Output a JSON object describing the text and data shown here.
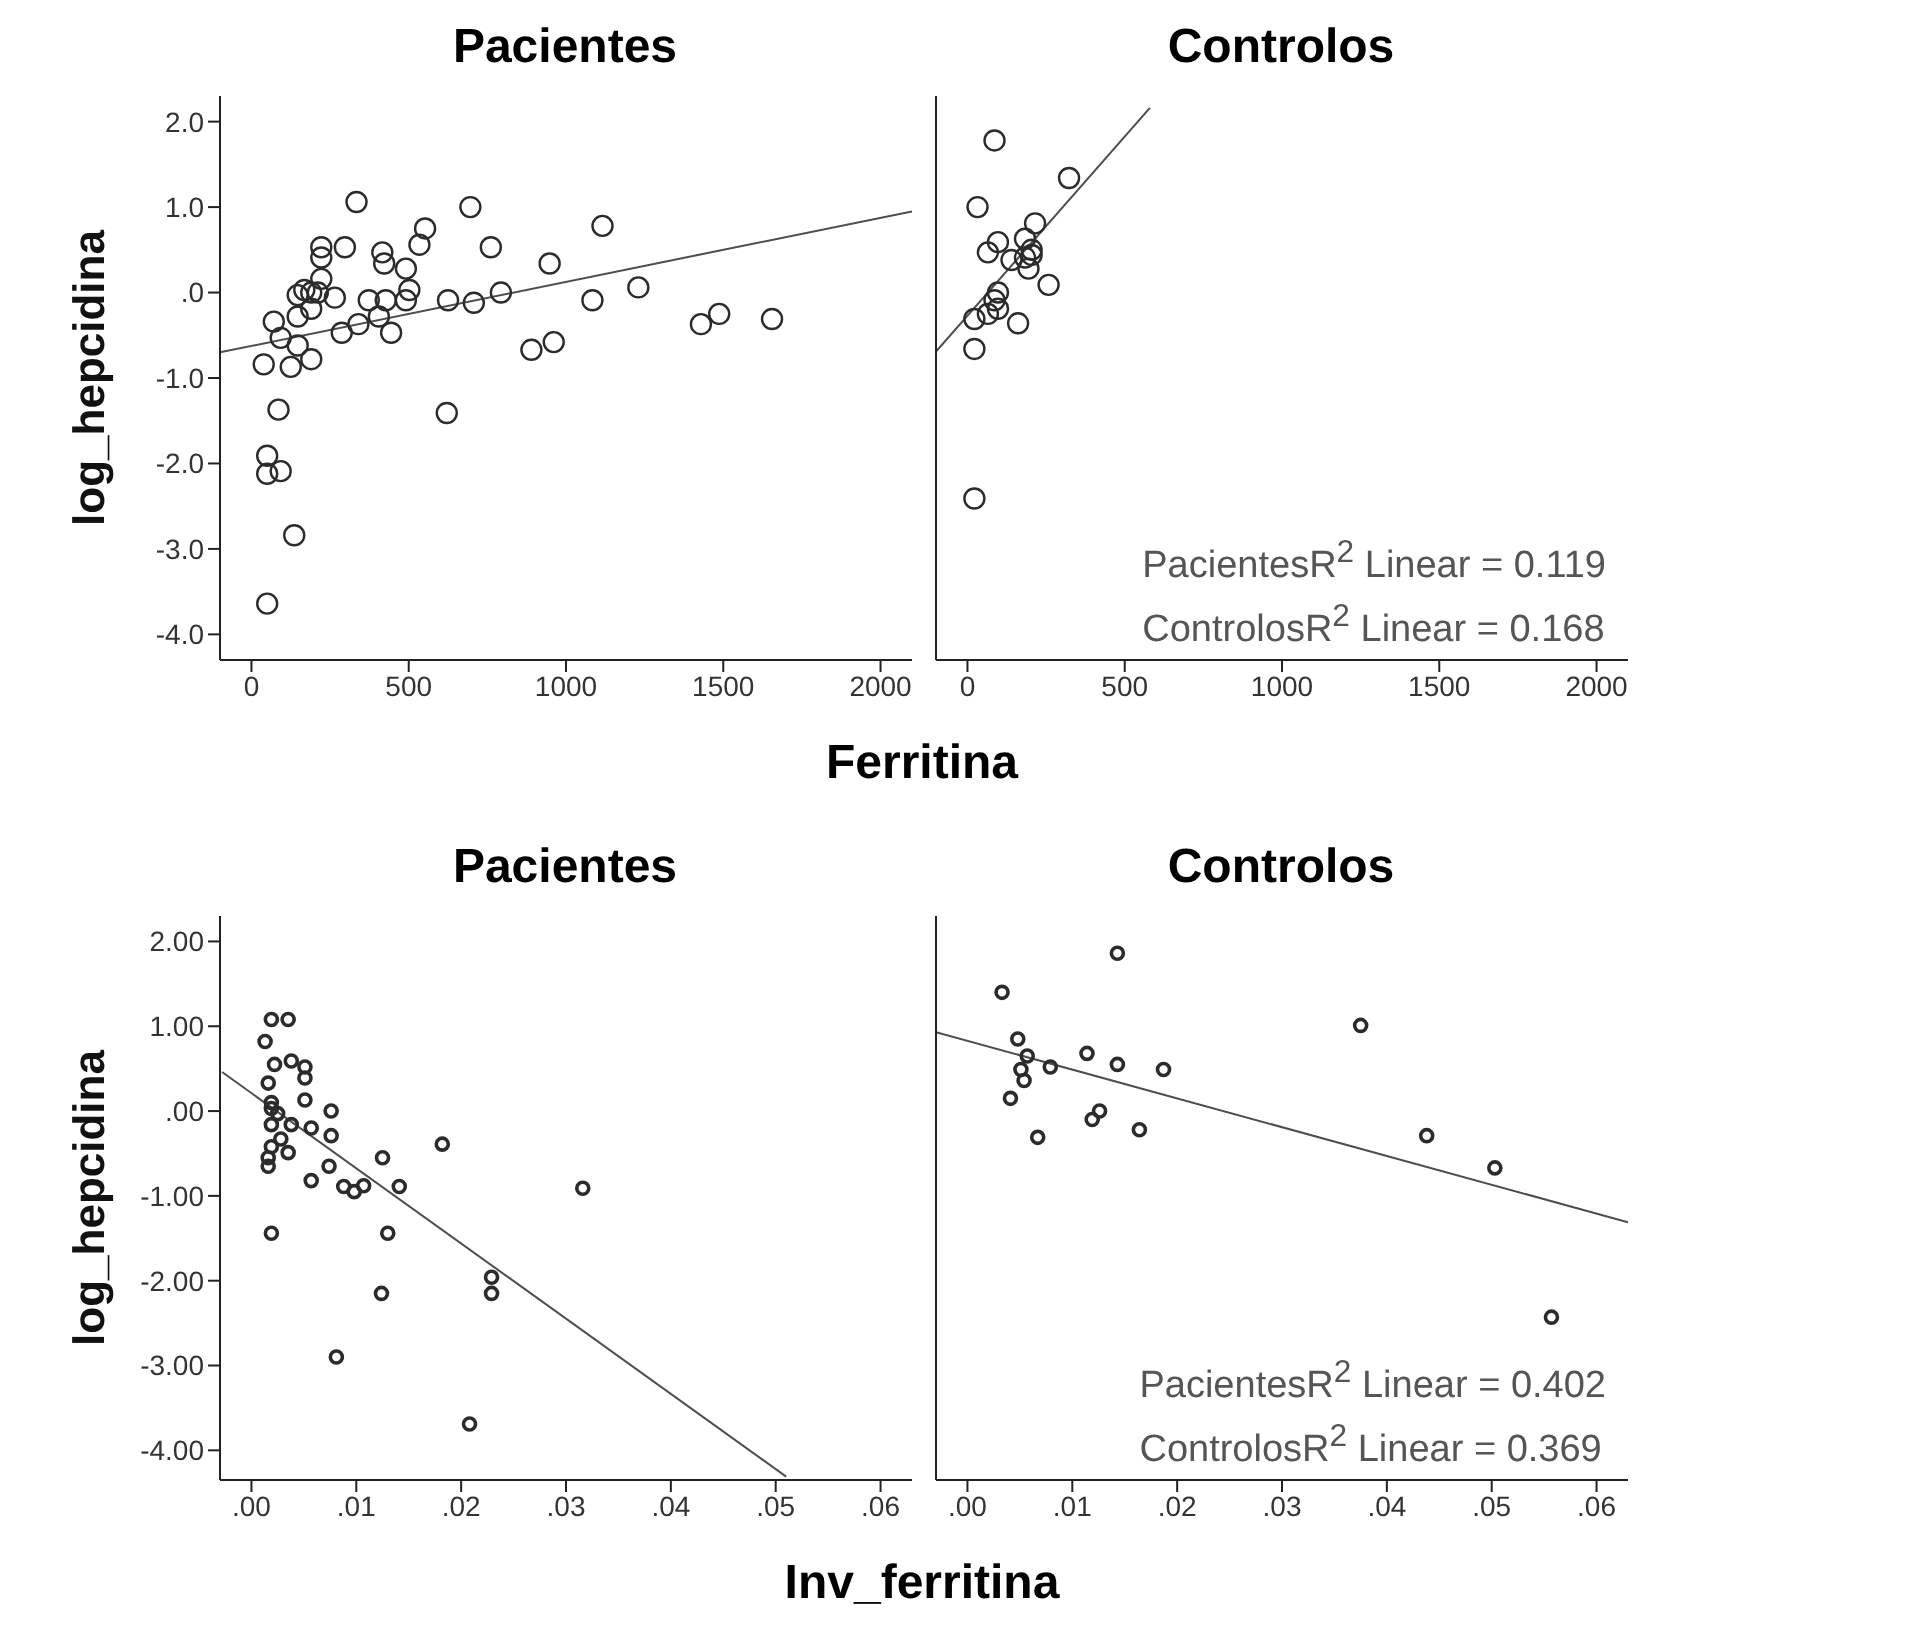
{
  "chart_data": [
    {
      "type": "scatter",
      "title": "Pacientes",
      "xlabel": "Ferritina",
      "ylabel": "log_hepcidina",
      "xlim": [
        -100,
        2100
      ],
      "xticks": [
        0,
        500,
        1000,
        1500,
        2000
      ],
      "ylim": [
        -4.3,
        2.3
      ],
      "yticks": [
        {
          "value": 2,
          "label": "2.0"
        },
        {
          "value": 1,
          "label": "1.0"
        },
        {
          "value": 0,
          "label": ".0"
        },
        {
          "value": -1,
          "label": "-1.0"
        },
        {
          "value": -2,
          "label": "-2.0"
        },
        {
          "value": -3,
          "label": "-3.0"
        },
        {
          "value": -4,
          "label": "-4.0"
        }
      ],
      "series": [
        {
          "type": "scatter",
          "marker": "circle",
          "color": "#2b2b2b",
          "x": [
            1655,
            1487,
            1429,
            1230,
            1116,
            1084,
            948,
            961,
            890,
            793,
            696,
            761,
            707,
            625,
            621,
            552,
            534,
            491,
            502,
            491,
            416,
            422,
            427,
            444,
            405,
            373,
            340,
            334,
            297,
            287,
            222,
            222,
            222,
            265,
            211,
            168,
            190,
            147,
            71,
            93,
            147,
            190,
            125,
            39,
            86,
            50,
            93,
            50,
            136,
            50,
            190,
            147
          ],
          "values": [
            -0.31,
            -0.25,
            -0.37,
            0.06,
            0.78,
            -0.09,
            0.34,
            -0.58,
            -0.67,
            0.0,
            1.0,
            0.53,
            -0.12,
            -0.09,
            -1.41,
            0.75,
            0.56,
            0.28,
            0.03,
            -0.09,
            0.47,
            0.34,
            -0.09,
            -0.47,
            -0.28,
            -0.09,
            -0.37,
            1.06,
            0.53,
            -0.47,
            0.53,
            0.41,
            0.16,
            -0.06,
            0.0,
            0.03,
            -0.19,
            -0.28,
            -0.34,
            -0.53,
            -0.62,
            -0.78,
            -0.87,
            -0.84,
            -1.37,
            -1.91,
            -2.09,
            -2.12,
            -2.84,
            -3.64,
            0.0,
            -0.03
          ]
        },
        {
          "type": "line",
          "color": "#4d4d4d",
          "x": [
            -100,
            2100
          ],
          "values": [
            -0.7,
            0.95
          ]
        }
      ]
    },
    {
      "type": "scatter",
      "title": "Controlos",
      "tick_labels": "x",
      "xlim": [
        -100,
        2100
      ],
      "xticks": [
        0,
        500,
        1000,
        1500,
        2000
      ],
      "ylim": [
        -4.3,
        2.3
      ],
      "annotations": [
        "PacientesR$^{2}$ Linear = 0.119",
        "ControlosR$^{2}$ Linear = 0.168"
      ],
      "series": [
        {
          "type": "scatter",
          "marker": "circle",
          "color": "#2b2b2b",
          "x": [
            86,
            32,
            323,
            215,
            183,
            204,
            204,
            183,
            194,
            258,
            97,
            65,
            140,
            97,
            97,
            65,
            22,
            161,
            22,
            22,
            86
          ],
          "values": [
            1.78,
            1.0,
            1.34,
            0.81,
            0.63,
            0.5,
            0.44,
            0.41,
            0.28,
            0.09,
            0.59,
            0.47,
            0.38,
            0.0,
            -0.19,
            -0.25,
            -0.31,
            -0.36,
            -0.66,
            -2.41,
            -0.09
          ]
        },
        {
          "type": "line",
          "color": "#4d4d4d",
          "x": [
            -100,
            580
          ],
          "values": [
            -0.69,
            2.16
          ]
        }
      ]
    },
    {
      "type": "scatter",
      "title": "Pacientes",
      "xlabel": "Inv_ferritina",
      "ylabel": "log_hepcidina",
      "xlim": [
        -0.003,
        0.063
      ],
      "xticks": [
        {
          "value": 0,
          "label": ".00"
        },
        {
          "value": 0.01,
          "label": ".01"
        },
        {
          "value": 0.02,
          "label": ".02"
        },
        {
          "value": 0.03,
          "label": ".03"
        },
        {
          "value": 0.04,
          "label": ".04"
        },
        {
          "value": 0.05,
          "label": ".05"
        },
        {
          "value": 0.06,
          "label": ".06"
        }
      ],
      "ylim": [
        -4.35,
        2.3
      ],
      "yticks": [
        {
          "value": 2,
          "label": "2.00"
        },
        {
          "value": 1,
          "label": "1.00"
        },
        {
          "value": 0,
          "label": ".00"
        },
        {
          "value": -1,
          "label": "-1.00"
        },
        {
          "value": -2,
          "label": "-2.00"
        },
        {
          "value": -3,
          "label": "-3.00"
        },
        {
          "value": -4,
          "label": "-4.00"
        }
      ],
      "series": [
        {
          "type": "scatter",
          "marker": "circle",
          "color": "#2b2b2b",
          "x": [
            0.0316,
            0.0229,
            0.0229,
            0.0208,
            0.0182,
            0.0141,
            0.013,
            0.0124,
            0.0125,
            0.0107,
            0.0098,
            0.0088,
            0.0081,
            0.0074,
            0.0057,
            0.0076,
            0.0076,
            0.0057,
            0.0051,
            0.0051,
            0.0051,
            0.0035,
            0.0019,
            0.0013,
            0.0022,
            0.0038,
            0.0016,
            0.0019,
            0.0025,
            0.0019,
            0.0028,
            0.0035,
            0.0016,
            0.0016,
            0.0019,
            0.0019,
            0.0038,
            0.0019
          ],
          "values": [
            -0.91,
            -1.96,
            -2.15,
            -3.69,
            -0.39,
            -0.89,
            -1.44,
            -2.15,
            -0.55,
            -0.88,
            -0.95,
            -0.89,
            -2.9,
            -0.65,
            -0.82,
            0.0,
            -0.29,
            -0.2,
            0.13,
            0.52,
            0.39,
            1.08,
            1.08,
            0.82,
            0.55,
            0.59,
            0.33,
            0.1,
            -0.03,
            -0.16,
            -0.33,
            -0.49,
            -0.55,
            -0.65,
            -0.42,
            -1.44,
            -0.16,
            0.03
          ]
        },
        {
          "type": "line",
          "color": "#4d4d4d",
          "x": [
            -0.0028,
            0.051
          ],
          "values": [
            0.46,
            -4.31
          ]
        }
      ]
    },
    {
      "type": "scatter",
      "title": "Controlos",
      "tick_labels": "x",
      "xlim": [
        -0.003,
        0.063
      ],
      "xticks": [
        {
          "value": 0,
          "label": ".00"
        },
        {
          "value": 0.01,
          "label": ".01"
        },
        {
          "value": 0.02,
          "label": ".02"
        },
        {
          "value": 0.03,
          "label": ".03"
        },
        {
          "value": 0.04,
          "label": ".04"
        },
        {
          "value": 0.05,
          "label": ".05"
        },
        {
          "value": 0.06,
          "label": ".06"
        }
      ],
      "ylim": [
        -4.35,
        2.3
      ],
      "annotations": [
        "PacientesR$^{2}$ Linear = 0.402",
        "ControlosR$^{2}$ Linear = 0.369"
      ],
      "series": [
        {
          "type": "scatter",
          "marker": "circle",
          "color": "#2b2b2b",
          "x": [
            0.0143,
            0.0033,
            0.0375,
            0.0048,
            0.0114,
            0.0057,
            0.0143,
            0.0187,
            0.0079,
            0.0051,
            0.0054,
            0.0041,
            0.0126,
            0.0119,
            0.0164,
            0.0067,
            0.0438,
            0.0503,
            0.0557
          ],
          "values": [
            1.86,
            1.4,
            1.01,
            0.85,
            0.68,
            0.65,
            0.55,
            0.49,
            0.52,
            0.49,
            0.36,
            0.15,
            0.0,
            -0.1,
            -0.22,
            -0.31,
            -0.29,
            -0.67,
            -2.43
          ]
        },
        {
          "type": "line",
          "color": "#4d4d4d",
          "x": [
            -0.003,
            0.063
          ],
          "values": [
            0.93,
            -1.31
          ]
        }
      ]
    }
  ]
}
